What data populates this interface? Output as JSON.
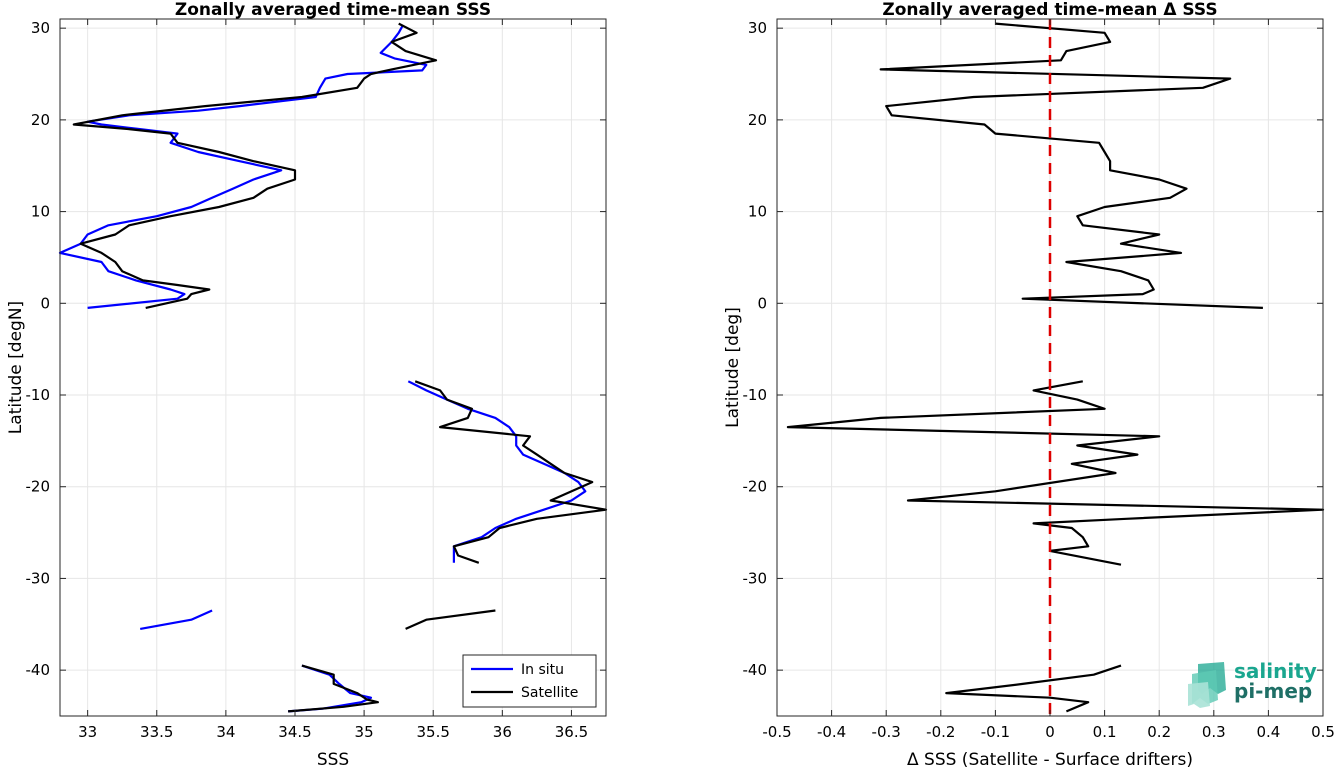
{
  "chart_data": [
    {
      "type": "line",
      "title": "Zonally averaged time-mean SSS",
      "xlabel": "SSS",
      "ylabel": "Latitude [degN]",
      "xlim": [
        32.8,
        36.75
      ],
      "ylim": [
        -45,
        31
      ],
      "xticks": [
        33,
        33.5,
        34,
        34.5,
        35,
        35.5,
        36,
        36.5
      ],
      "yticks": [
        -40,
        -30,
        -20,
        -10,
        0,
        10,
        20,
        30
      ],
      "grid": true,
      "legend_position": "bottom-right",
      "series": [
        {
          "name": "In situ",
          "color": "#0000ff",
          "segments": [
            [
              [
                35.28,
                30.3
              ],
              [
                35.25,
                29.5
              ],
              [
                35.2,
                28.5
              ],
              [
                35.12,
                27.3
              ],
              [
                35.22,
                26.7
              ],
              [
                35.45,
                26
              ],
              [
                35.42,
                25.4
              ],
              [
                34.88,
                25
              ],
              [
                34.72,
                24.5
              ],
              [
                34.68,
                23.5
              ],
              [
                34.65,
                22.5
              ],
              [
                34.1,
                21.5
              ],
              [
                33.8,
                21
              ],
              [
                33.3,
                20.5
              ],
              [
                33.0,
                19.8
              ],
              [
                33.1,
                19.5
              ],
              [
                33.65,
                18.5
              ],
              [
                33.6,
                17.5
              ],
              [
                33.8,
                16.5
              ],
              [
                34.1,
                15.5
              ],
              [
                34.4,
                14.5
              ],
              [
                34.2,
                13.5
              ],
              [
                34.05,
                12.5
              ],
              [
                33.9,
                11.5
              ],
              [
                33.75,
                10.5
              ],
              [
                33.5,
                9.5
              ],
              [
                33.15,
                8.5
              ],
              [
                33.0,
                7.5
              ],
              [
                32.95,
                6.5
              ],
              [
                32.8,
                5.5
              ],
              [
                33.1,
                4.5
              ],
              [
                33.15,
                3.5
              ],
              [
                33.35,
                2.5
              ],
              [
                33.6,
                1.5
              ],
              [
                33.7,
                1.0
              ],
              [
                33.65,
                0.5
              ],
              [
                33.0,
                -0.5
              ]
            ],
            [
              [
                35.32,
                -8.5
              ],
              [
                35.45,
                -9.5
              ],
              [
                35.6,
                -10.5
              ],
              [
                35.75,
                -11.5
              ],
              [
                35.95,
                -12.5
              ],
              [
                36.05,
                -13.5
              ],
              [
                36.1,
                -14.5
              ],
              [
                36.1,
                -15.5
              ],
              [
                36.15,
                -16.5
              ],
              [
                36.3,
                -17.5
              ],
              [
                36.45,
                -18.5
              ],
              [
                36.55,
                -19.5
              ],
              [
                36.6,
                -20.5
              ],
              [
                36.5,
                -21.5
              ],
              [
                36.3,
                -22.5
              ],
              [
                36.1,
                -23.5
              ],
              [
                35.95,
                -24.5
              ],
              [
                35.85,
                -25.5
              ],
              [
                35.65,
                -26.5
              ],
              [
                35.65,
                -27.5
              ],
              [
                35.65,
                -28.3
              ]
            ],
            [
              [
                33.38,
                -35.5
              ],
              [
                33.75,
                -34.5
              ],
              [
                33.9,
                -33.5
              ]
            ],
            [
              [
                34.55,
                -39.5
              ],
              [
                34.75,
                -40.5
              ],
              [
                34.82,
                -41.5
              ],
              [
                34.9,
                -42.5
              ],
              [
                35.05,
                -43.0
              ],
              [
                34.98,
                -43.5
              ],
              [
                34.7,
                -44.2
              ],
              [
                34.45,
                -44.5
              ]
            ]
          ]
        },
        {
          "name": "Satellite",
          "color": "#000000",
          "segments": [
            [
              [
                35.25,
                30.5
              ],
              [
                35.38,
                29.5
              ],
              [
                35.2,
                28.5
              ],
              [
                35.3,
                27.5
              ],
              [
                35.52,
                26.5
              ],
              [
                35.2,
                25.5
              ],
              [
                35.05,
                25
              ],
              [
                35.0,
                24.5
              ],
              [
                34.95,
                23.5
              ],
              [
                34.55,
                22.5
              ],
              [
                33.85,
                21.5
              ],
              [
                33.25,
                20.5
              ],
              [
                32.9,
                19.5
              ],
              [
                33.3,
                19
              ],
              [
                33.6,
                18.5
              ],
              [
                33.65,
                17.5
              ],
              [
                33.95,
                16.5
              ],
              [
                34.2,
                15.5
              ],
              [
                34.5,
                14.5
              ],
              [
                34.5,
                13.5
              ],
              [
                34.3,
                12.5
              ],
              [
                34.2,
                11.5
              ],
              [
                33.95,
                10.5
              ],
              [
                33.6,
                9.5
              ],
              [
                33.3,
                8.5
              ],
              [
                33.2,
                7.5
              ],
              [
                32.95,
                6.5
              ],
              [
                33.1,
                5.5
              ],
              [
                33.2,
                4.5
              ],
              [
                33.25,
                3.5
              ],
              [
                33.4,
                2.5
              ],
              [
                33.65,
                2.0
              ],
              [
                33.88,
                1.5
              ],
              [
                33.75,
                1.0
              ],
              [
                33.72,
                0.5
              ],
              [
                33.42,
                -0.5
              ]
            ],
            [
              [
                35.37,
                -8.5
              ],
              [
                35.55,
                -9.5
              ],
              [
                35.6,
                -10.5
              ],
              [
                35.78,
                -11.5
              ],
              [
                35.75,
                -12.5
              ],
              [
                35.55,
                -13.5
              ],
              [
                36.2,
                -14.5
              ],
              [
                36.15,
                -15.5
              ],
              [
                36.25,
                -16.5
              ],
              [
                36.35,
                -17.5
              ],
              [
                36.45,
                -18.5
              ],
              [
                36.65,
                -19.5
              ],
              [
                36.35,
                -21.5
              ],
              [
                36.75,
                -22.5
              ],
              [
                36.25,
                -23.5
              ],
              [
                35.98,
                -24.5
              ],
              [
                35.9,
                -25.5
              ],
              [
                35.65,
                -26.5
              ],
              [
                35.68,
                -27.5
              ],
              [
                35.83,
                -28.3
              ]
            ],
            [
              [
                35.3,
                -35.5
              ],
              [
                35.45,
                -34.5
              ],
              [
                35.95,
                -33.5
              ]
            ],
            [
              [
                34.55,
                -39.5
              ],
              [
                34.78,
                -40.5
              ],
              [
                34.78,
                -41.5
              ],
              [
                34.95,
                -42.5
              ],
              [
                35.02,
                -43.2
              ],
              [
                35.1,
                -43.5
              ],
              [
                34.85,
                -44.0
              ],
              [
                34.45,
                -44.5
              ]
            ]
          ]
        }
      ]
    },
    {
      "type": "line",
      "title": "Zonally averaged time-mean Δ SSS",
      "xlabel": "Δ SSS (Satellite - Surface drifters)",
      "ylabel": "Latitude [deg]",
      "xlim": [
        -0.5,
        0.5
      ],
      "ylim": [
        -45,
        31
      ],
      "xticks": [
        -0.5,
        -0.4,
        -0.3,
        -0.2,
        -0.1,
        0,
        0.1,
        0.2,
        0.3,
        0.4,
        0.5
      ],
      "yticks": [
        -40,
        -30,
        -20,
        -10,
        0,
        10,
        20,
        30
      ],
      "grid": true,
      "reference_line": {
        "x": 0,
        "color": "#dd0000",
        "style": "dashed"
      },
      "series": [
        {
          "name": "",
          "color": "#000000",
          "segments": [
            [
              [
                -0.1,
                30.5
              ],
              [
                0.1,
                29.5
              ],
              [
                0.11,
                28.5
              ],
              [
                0.03,
                27.5
              ],
              [
                0.02,
                26.5
              ],
              [
                -0.31,
                25.5
              ],
              [
                0.33,
                24.5
              ],
              [
                0.28,
                23.5
              ],
              [
                -0.14,
                22.5
              ],
              [
                -0.3,
                21.5
              ],
              [
                -0.29,
                20.5
              ],
              [
                -0.12,
                19.5
              ],
              [
                -0.1,
                18.5
              ],
              [
                0.09,
                17.5
              ],
              [
                0.1,
                16.5
              ],
              [
                0.11,
                15.5
              ],
              [
                0.11,
                14.5
              ],
              [
                0.2,
                13.5
              ],
              [
                0.25,
                12.5
              ],
              [
                0.22,
                11.5
              ],
              [
                0.1,
                10.5
              ],
              [
                0.05,
                9.5
              ],
              [
                0.06,
                8.5
              ],
              [
                0.2,
                7.5
              ],
              [
                0.13,
                6.5
              ],
              [
                0.24,
                5.5
              ],
              [
                0.03,
                4.5
              ],
              [
                0.13,
                3.5
              ],
              [
                0.18,
                2.5
              ],
              [
                0.19,
                1.5
              ],
              [
                0.17,
                1.0
              ],
              [
                -0.05,
                0.5
              ],
              [
                0.39,
                -0.5
              ]
            ],
            [
              [
                0.06,
                -8.5
              ],
              [
                -0.03,
                -9.5
              ],
              [
                0.05,
                -10.5
              ],
              [
                0.1,
                -11.5
              ],
              [
                -0.31,
                -12.5
              ],
              [
                -0.48,
                -13.5
              ],
              [
                0.2,
                -14.5
              ],
              [
                0.05,
                -15.5
              ],
              [
                0.16,
                -16.5
              ],
              [
                0.04,
                -17.5
              ],
              [
                0.12,
                -18.5
              ],
              [
                -0.1,
                -20.5
              ],
              [
                -0.26,
                -21.5
              ],
              [
                0.5,
                -22.5
              ],
              [
                0.14,
                -23.5
              ],
              [
                -0.03,
                -24.0
              ],
              [
                0.04,
                -24.5
              ],
              [
                0.06,
                -25.5
              ],
              [
                0.07,
                -26.5
              ],
              [
                0.0,
                -27.0
              ],
              [
                0.13,
                -28.5
              ]
            ],
            [
              [
                0.13,
                -39.5
              ],
              [
                0.08,
                -40.5
              ],
              [
                -0.05,
                -41.5
              ],
              [
                -0.19,
                -42.5
              ],
              [
                0.0,
                -43.0
              ],
              [
                0.07,
                -43.5
              ],
              [
                0.03,
                -44.5
              ]
            ]
          ]
        }
      ]
    }
  ],
  "logo": {
    "line1": "salinity",
    "line2": "pi-mep"
  }
}
